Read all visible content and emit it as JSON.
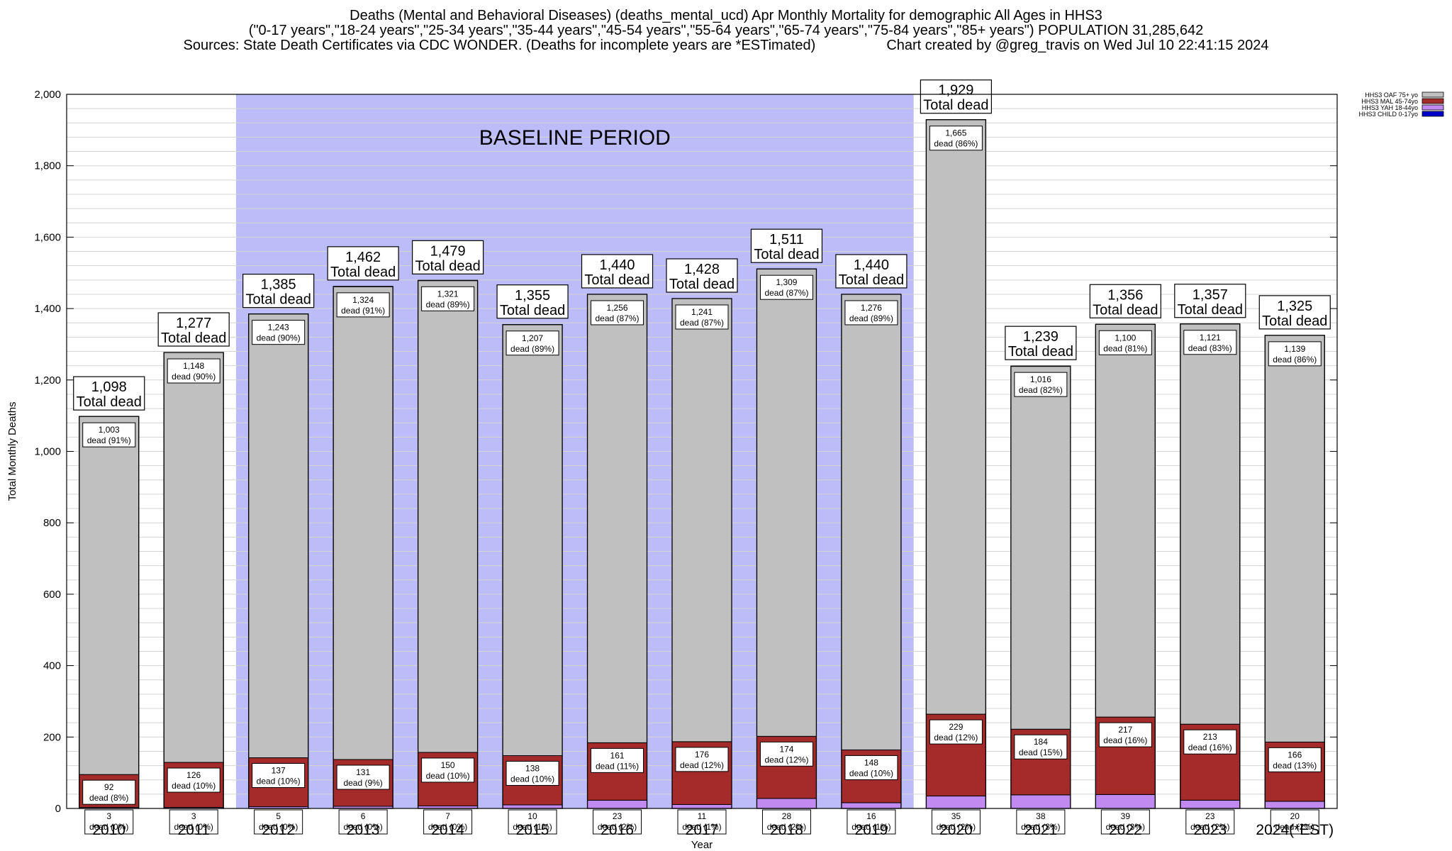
{
  "title_lines": [
    "Deaths (Mental and Behavioral Diseases) (deaths_mental_ucd) Apr Monthly Mortality for demographic All Ages in HHS3",
    "(\"0-17 years\",\"18-24 years\",\"25-34 years\",\"35-44 years\",\"45-54 years\",\"55-64 years\",\"65-74 years\",\"75-84 years\",\"85+ years\") POPULATION 31,285,642",
    "Sources: State Death Certificates via CDC WONDER. (Deaths for incomplete years are *ESTimated)                  Chart created by @greg_travis on Wed Jul 10 22:41:15 2024"
  ],
  "chart_data": {
    "type": "bar",
    "stacked": true,
    "xlabel": "Year",
    "ylabel": "Total Monthly Deaths",
    "ylim": [
      0,
      2000
    ],
    "y_ticks": [
      0,
      200,
      400,
      600,
      800,
      1000,
      1200,
      1400,
      1600,
      1800,
      2000
    ],
    "y_tick_labels": [
      "0",
      "200",
      "400",
      "600",
      "800",
      "1,000",
      "1,200",
      "1,400",
      "1,600",
      "1,800",
      "2,000"
    ],
    "grid": "horizontal minor every 40",
    "legend_position": "top-right",
    "baseline_label": "BASELINE PERIOD",
    "baseline_range": [
      "2012",
      "2019"
    ],
    "baseline_color": "#bcbcf8",
    "categories": [
      "2010",
      "2011",
      "2012",
      "2013",
      "2014",
      "2015",
      "2016",
      "2017",
      "2018",
      "2019",
      "2020",
      "2021",
      "2022",
      "2023",
      "2024(*EST)"
    ],
    "total_value_labels": [
      "1,098",
      "1,277",
      "1,385",
      "1,462",
      "1,479",
      "1,355",
      "1,440",
      "1,428",
      "1,511",
      "1,440",
      "1,929",
      "1,239",
      "1,356",
      "1,357",
      "1,325"
    ],
    "total_suffix": "Total dead",
    "totals": [
      1098,
      1277,
      1385,
      1462,
      1479,
      1355,
      1440,
      1428,
      1511,
      1440,
      1929,
      1239,
      1356,
      1357,
      1325
    ],
    "series": [
      {
        "name": "HHS3 CHILD 0-17yo",
        "color": "#0000cc",
        "values": [
          0,
          0,
          0,
          0,
          0,
          0,
          0,
          0,
          0,
          0,
          0,
          0,
          0,
          0,
          0
        ],
        "labels": []
      },
      {
        "name": "HHS3 YAH 18-44yo",
        "color": "#c08af0",
        "values": [
          3,
          3,
          5,
          6,
          7,
          10,
          23,
          11,
          28,
          16,
          35,
          38,
          39,
          23,
          20
        ],
        "labels": [
          "3",
          "3",
          "5",
          "6",
          "7",
          "10",
          "23",
          "11",
          "28",
          "16",
          "35",
          "38",
          "39",
          "23",
          "20"
        ],
        "pcts": [
          "dead (0%)",
          "dead (0%)",
          "dead (0%)",
          "dead (0%)",
          "dead (0%)",
          "dead (1%)",
          "dead (2%)",
          "dead (1%)",
          "dead (2%)",
          "dead (1%)",
          "dead (2%)",
          "dead (3%)",
          "dead (3%)",
          "dead (2%)",
          "dead (2%)"
        ]
      },
      {
        "name": "HHS3 MAL 45-74yo",
        "color": "#a52a2a",
        "values": [
          92,
          126,
          137,
          131,
          150,
          138,
          161,
          176,
          174,
          148,
          229,
          184,
          217,
          213,
          166
        ],
        "labels": [
          "92",
          "126",
          "137",
          "131",
          "150",
          "138",
          "161",
          "176",
          "174",
          "148",
          "229",
          "184",
          "217",
          "213",
          "166"
        ],
        "pcts": [
          "dead (8%)",
          "dead (10%)",
          "dead (10%)",
          "dead (9%)",
          "dead (10%)",
          "dead (10%)",
          "dead (11%)",
          "dead (12%)",
          "dead (12%)",
          "dead (10%)",
          "dead (12%)",
          "dead (15%)",
          "dead (16%)",
          "dead (16%)",
          "dead (13%)"
        ]
      },
      {
        "name": "HHS3 OAF 75+ yo",
        "color": "#c0c0c0",
        "values": [
          1003,
          1148,
          1243,
          1324,
          1321,
          1207,
          1256,
          1241,
          1309,
          1276,
          1665,
          1016,
          1100,
          1121,
          1139
        ],
        "labels": [
          "1,003",
          "1,148",
          "1,243",
          "1,324",
          "1,321",
          "1,207",
          "1,256",
          "1,241",
          "1,309",
          "1,276",
          "1,665",
          "1,016",
          "1,100",
          "1,121",
          "1,139"
        ],
        "pcts": [
          "dead (91%)",
          "dead (90%)",
          "dead (90%)",
          "dead (91%)",
          "dead (89%)",
          "dead (89%)",
          "dead (87%)",
          "dead (87%)",
          "dead (87%)",
          "dead (89%)",
          "dead (86%)",
          "dead (82%)",
          "dead (81%)",
          "dead (83%)",
          "dead (86%)"
        ]
      }
    ],
    "legend_order": [
      "HHS3 OAF 75+ yo",
      "HHS3 MAL 45-74yo",
      "HHS3 YAH 18-44yo",
      "HHS3 CHILD 0-17yo"
    ]
  }
}
